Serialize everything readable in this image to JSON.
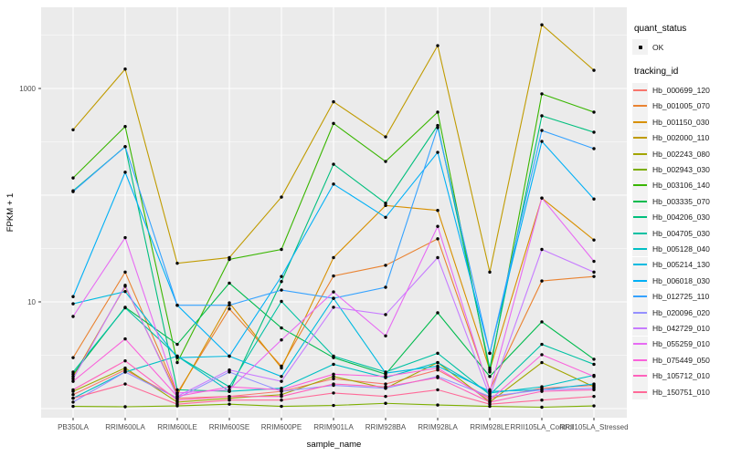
{
  "chart_data": {
    "type": "line",
    "xlabel": "sample_name",
    "ylabel": "FPKM + 1",
    "y_scale": "log10",
    "y_tick_labels": [
      "10",
      "1000"
    ],
    "y_tick_values": [
      10,
      1000
    ],
    "ylim": [
      0.82,
      5700
    ],
    "grid": "on",
    "legend_position": "right",
    "panel_bg": "#EBEBEB",
    "grid_color": "#FFFFFF",
    "point_color": "#000000",
    "axis_text_color": "#4D4D4D",
    "legend_key_bg": "#F2F2F2",
    "categories": [
      "PB350LA",
      "RRIM600LA",
      "RRIM600LE",
      "RRIM600SE",
      "RRIM600PE",
      "RRIM901LA",
      "RRIM928BA",
      "RRIM928LA",
      "RRIM928LE",
      "RRII105LA_Control",
      "RRII105LA_Stressed"
    ],
    "legend": {
      "quant_status_title": "quant_status",
      "quant_status_items": [
        "OK"
      ],
      "tracking_title": "tracking_id"
    },
    "series": [
      {
        "name": "Hb_000699_120",
        "color": "#F8766D",
        "values": [
          1.35,
          2.3,
          1.25,
          1.3,
          1.45,
          1.9,
          1.7,
          2.3,
          1.25,
          1.55,
          1.65
        ]
      },
      {
        "name": "Hb_001005_070",
        "color": "#EA8331",
        "values": [
          3.0,
          19,
          1.4,
          8.6,
          2.5,
          17.5,
          22,
          39,
          1.5,
          15.7,
          17.3
        ]
      },
      {
        "name": "Hb_001150_030",
        "color": "#D89000",
        "values": [
          2.0,
          14,
          1.35,
          9.8,
          2.4,
          26,
          80,
          72,
          2.3,
          94,
          38
        ]
      },
      {
        "name": "Hb_002000_110",
        "color": "#C09B00",
        "values": [
          410,
          1520,
          23,
          26,
          96,
          750,
          352,
          2520,
          19,
          3950,
          1480
        ]
      },
      {
        "name": "Hb_002243_080",
        "color": "#A3A500",
        "values": [
          1.45,
          2.4,
          1.15,
          1.25,
          1.35,
          2.0,
          1.55,
          2.7,
          1.15,
          2.7,
          1.6
        ]
      },
      {
        "name": "Hb_002943_030",
        "color": "#7CAE00",
        "values": [
          1.05,
          1.04,
          1.06,
          1.1,
          1.05,
          1.07,
          1.12,
          1.08,
          1.05,
          1.03,
          1.06
        ]
      },
      {
        "name": "Hb_003106_140",
        "color": "#39B600",
        "values": [
          145,
          440,
          2.7,
          25,
          31,
          470,
          207,
          600,
          2.2,
          890,
          600
        ]
      },
      {
        "name": "Hb_003335_070",
        "color": "#00BB4E",
        "values": [
          2.1,
          8.9,
          4.0,
          15,
          5.7,
          3.0,
          2.1,
          7.9,
          2.0,
          6.5,
          2.9
        ]
      },
      {
        "name": "Hb_004206_030",
        "color": "#00BF7D",
        "values": [
          110,
          285,
          1.5,
          1.45,
          15.5,
          195,
          84,
          450,
          2.4,
          554,
          389
        ]
      },
      {
        "name": "Hb_004705_030",
        "color": "#00C1A3",
        "values": [
          2.2,
          8.8,
          3.1,
          1.6,
          10.1,
          3.1,
          2.2,
          3.3,
          1.35,
          4.0,
          2.6
        ]
      },
      {
        "name": "Hb_005128_040",
        "color": "#00BFC4",
        "values": [
          1.25,
          2.2,
          3.1,
          1.45,
          1.55,
          2.6,
          1.95,
          2.7,
          1.4,
          1.6,
          2.05
        ]
      },
      {
        "name": "Hb_005214_130",
        "color": "#00BAE0",
        "values": [
          9.6,
          12.5,
          3.0,
          3.1,
          2.0,
          10.8,
          2.15,
          2.5,
          1.45,
          1.5,
          1.7
        ]
      },
      {
        "name": "Hb_006018_030",
        "color": "#00B0F6",
        "values": [
          11.2,
          164,
          9.3,
          3.1,
          17.3,
          127,
          62,
          252,
          3.3,
          319,
          92
        ]
      },
      {
        "name": "Hb_012725_110",
        "color": "#35A2FF",
        "values": [
          108,
          285,
          9.3,
          9.3,
          12.9,
          10.8,
          13.7,
          430,
          3.3,
          404,
          273
        ]
      },
      {
        "name": "Hb_020096_020",
        "color": "#9590FF",
        "values": [
          1.15,
          2.2,
          1.25,
          2.2,
          1.45,
          1.65,
          1.55,
          2.0,
          1.3,
          1.5,
          1.55
        ]
      },
      {
        "name": "Hb_042729_010",
        "color": "#C77CFF",
        "values": [
          1.9,
          14.3,
          1.3,
          2.3,
          1.8,
          8.9,
          7.6,
          26,
          1.3,
          31,
          19
        ]
      },
      {
        "name": "Hb_055259_010",
        "color": "#E76BF3",
        "values": [
          7.3,
          40,
          1.4,
          1.5,
          4.4,
          12.4,
          4.8,
          51,
          1.45,
          94,
          24
        ]
      },
      {
        "name": "Hb_075449_050",
        "color": "#FA62DB",
        "values": [
          1.8,
          4.5,
          1.3,
          1.6,
          1.5,
          2.1,
          2.0,
          2.4,
          1.2,
          3.2,
          2.0
        ]
      },
      {
        "name": "Hb_105712_010",
        "color": "#FF62BC",
        "values": [
          1.5,
          2.8,
          1.2,
          1.3,
          1.3,
          1.7,
          1.6,
          1.95,
          1.15,
          1.45,
          1.5
        ]
      },
      {
        "name": "Hb_150751_010",
        "color": "#FF6A98",
        "values": [
          1.25,
          1.7,
          1.1,
          1.2,
          1.2,
          1.4,
          1.3,
          1.5,
          1.1,
          1.2,
          1.3
        ]
      }
    ]
  }
}
